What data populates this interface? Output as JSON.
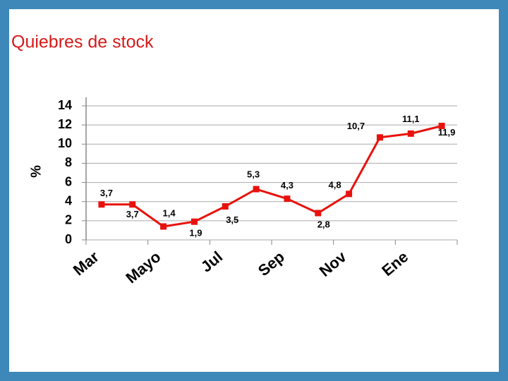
{
  "chart_data": {
    "type": "line",
    "title": "Quiebres de stock",
    "ylabel": "%",
    "categories": [
      "Mar",
      null,
      "Mayo",
      null,
      "Jul",
      null,
      "Sep",
      null,
      "Nov",
      null,
      "Ene",
      null
    ],
    "series": [
      {
        "name": "Quiebres",
        "color": "#e8120c",
        "values": [
          3.7,
          3.7,
          1.4,
          1.9,
          3.5,
          5.3,
          4.3,
          2.8,
          4.8,
          10.7,
          11.1,
          11.9
        ],
        "value_labels": [
          "3,7",
          "3,7",
          "1,4",
          "1,9",
          "3,5",
          "5,3",
          "4,3",
          "2,8",
          "4,8",
          "10,7",
          "11,1",
          "11,9"
        ]
      }
    ],
    "ylim": [
      0,
      14
    ],
    "yticks": [
      0,
      2,
      4,
      6,
      8,
      10,
      12,
      14
    ],
    "grid": true
  }
}
